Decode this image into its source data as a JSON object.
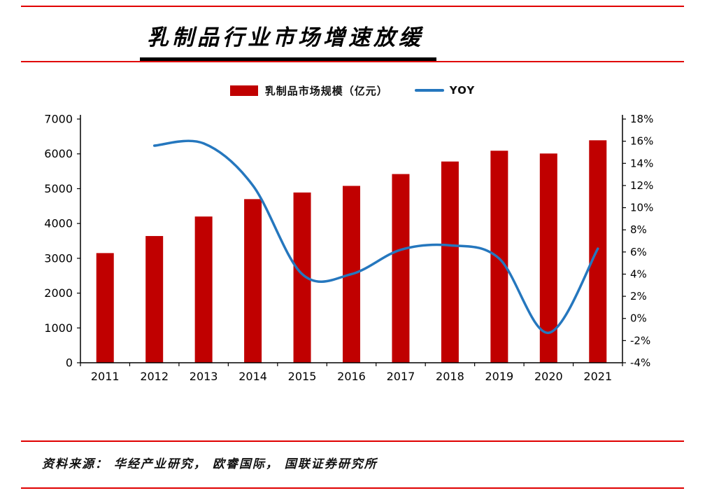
{
  "page": {
    "title": "乳制品行业市场增速放缓",
    "source": "资料来源： 华经产业研究， 欧睿国际， 国联证券研究所"
  },
  "legend": {
    "bar_label": "乳制品市场规模（亿元）",
    "line_label": "YOY"
  },
  "colors": {
    "bar": "#C00000",
    "line": "#2577BE",
    "rule": "#E00000",
    "axis": "#000000"
  },
  "chart_data": {
    "type": "bar",
    "subtype": "bar-line-combo",
    "title": "乳制品行业市场增速放缓",
    "categories": [
      "2011",
      "2012",
      "2013",
      "2014",
      "2015",
      "2016",
      "2017",
      "2018",
      "2019",
      "2020",
      "2021"
    ],
    "series": [
      {
        "name": "乳制品市场规模（亿元）",
        "type": "bar",
        "axis": "left",
        "values": [
          3150,
          3640,
          4200,
          4700,
          4890,
          5080,
          5420,
          5780,
          6090,
          6010,
          6390
        ]
      },
      {
        "name": "YOY",
        "type": "line",
        "axis": "right",
        "values": [
          null,
          15.6,
          15.8,
          12.0,
          4.0,
          4.0,
          6.2,
          6.6,
          5.4,
          -1.3,
          6.3
        ]
      }
    ],
    "left_axis": {
      "min": 0,
      "max": 7000,
      "step": 1000
    },
    "right_axis": {
      "min": -4,
      "max": 18,
      "step": 2,
      "suffix": "%"
    },
    "grid": false,
    "legend_position": "top"
  }
}
